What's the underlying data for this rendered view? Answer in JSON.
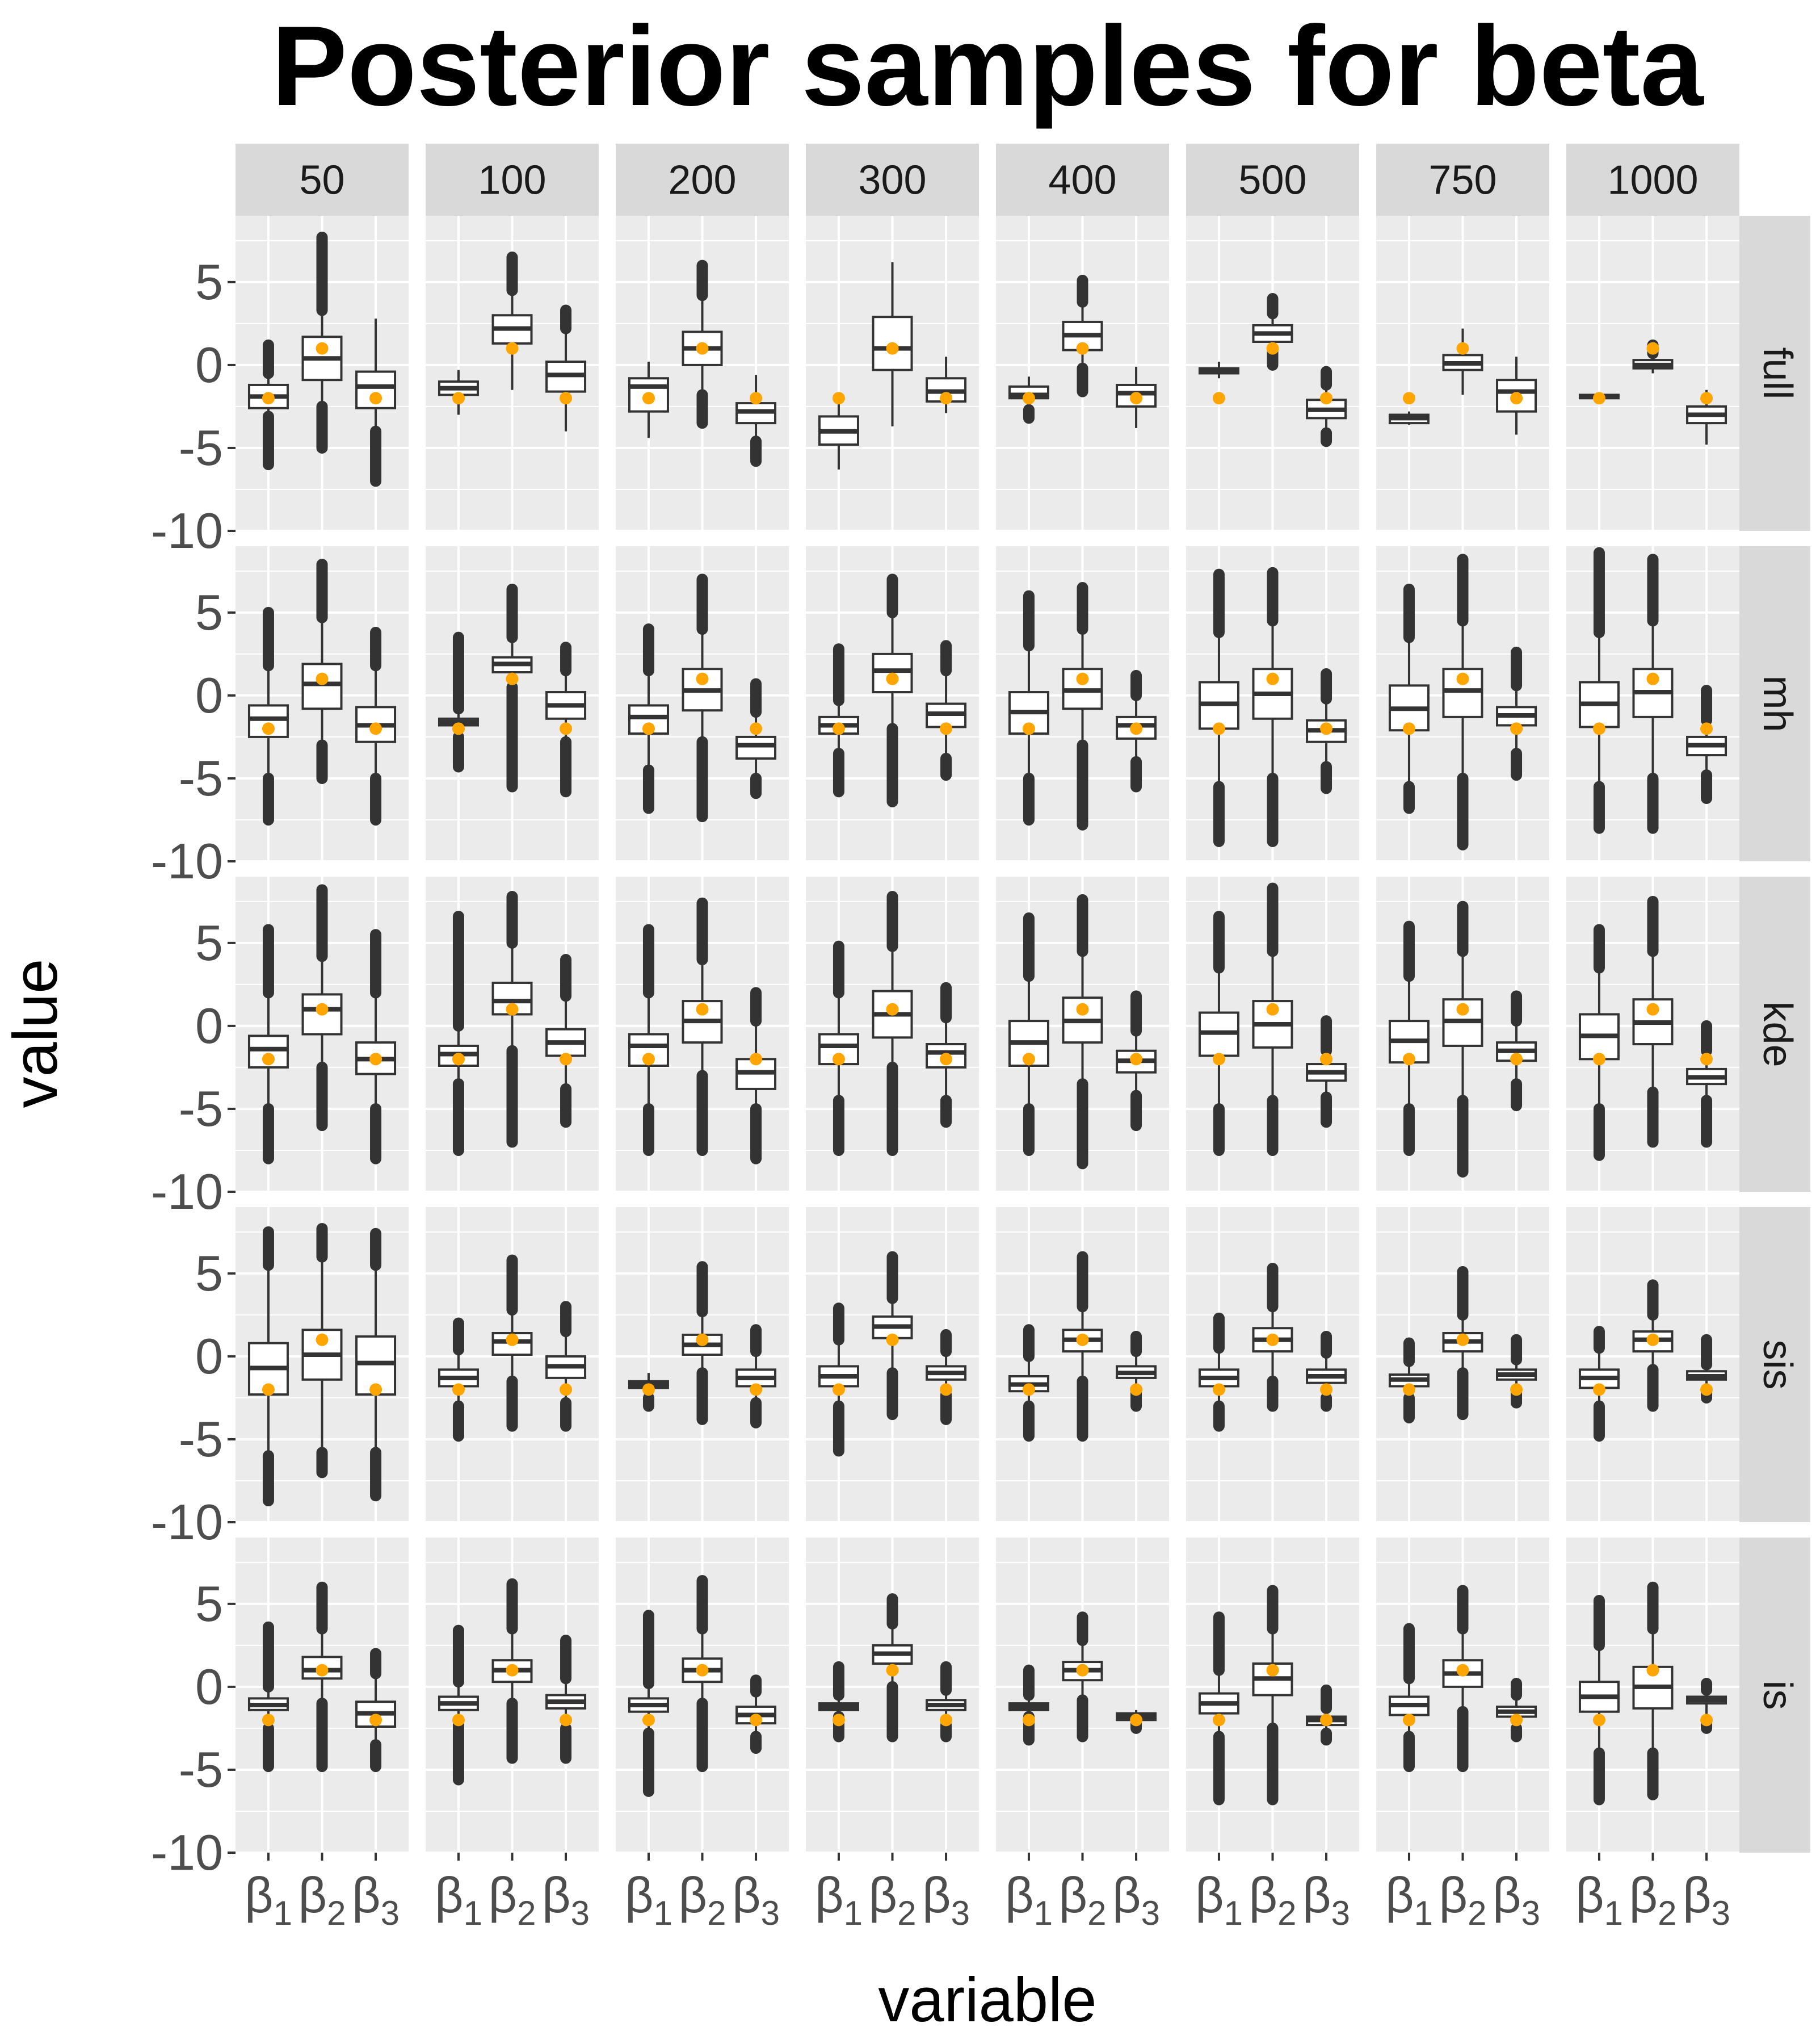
{
  "chart_data": {
    "type": "boxplot",
    "title": "Posterior samples for beta",
    "xlabel": "variable",
    "ylabel": "value",
    "ylim": [
      -10,
      9
    ],
    "yticks": [
      -10,
      -5,
      0,
      5
    ],
    "ytick_labels": [
      "-10",
      "-5",
      "0",
      "5"
    ],
    "grid": true,
    "column_facets": [
      "50",
      "100",
      "200",
      "300",
      "400",
      "500",
      "750",
      "1000"
    ],
    "row_facets": [
      "full",
      "mh",
      "kde",
      "sis",
      "is"
    ],
    "variables": [
      {
        "base": "β",
        "sub": "1"
      },
      {
        "base": "β",
        "sub": "2"
      },
      {
        "base": "β",
        "sub": "3"
      }
    ],
    "true_values": [
      -2,
      1,
      -2
    ],
    "colors": {
      "panel_bg": "#ebebeb",
      "grid": "#ffffff",
      "strip_bg": "#d9d9d9",
      "box_line": "#333333",
      "box_fill": "#ffffff",
      "outlier": "#333333",
      "true_point": "#ffa500"
    },
    "box_stats_format": "[whisker_low, q1, median, q3, whisker_high, outlier_low, outlier_high]",
    "box_stats": {
      "full": [
        [
          [
            -3.1,
            -2.6,
            -1.9,
            -1.2,
            -0.5,
            -6.0,
            1.2
          ],
          [
            -2.5,
            -0.9,
            0.4,
            1.7,
            3.3,
            -5.0,
            7.7
          ],
          [
            -4.0,
            -2.6,
            -1.3,
            -0.4,
            2.8,
            -7.0,
            null
          ]
        ],
        [
          [
            -3.0,
            -1.8,
            -1.4,
            -1.0,
            -0.3,
            null,
            null
          ],
          [
            -1.5,
            1.3,
            2.2,
            3.0,
            4.5,
            null,
            6.5
          ],
          [
            -4.0,
            -1.6,
            -0.6,
            0.2,
            2.2,
            null,
            3.3
          ]
        ],
        [
          [
            -4.4,
            -2.8,
            -1.3,
            -0.8,
            0.2,
            null,
            null
          ],
          [
            -1.8,
            0.0,
            1.0,
            2.0,
            4.2,
            -3.5,
            6.0
          ],
          [
            -4.6,
            -3.5,
            -2.8,
            -2.3,
            -0.6,
            -5.8,
            null
          ]
        ],
        [
          [
            -6.3,
            -4.8,
            -4.0,
            -3.1,
            -2.0,
            null,
            null
          ],
          [
            -3.7,
            -0.3,
            1.0,
            2.9,
            6.2,
            null,
            null
          ],
          [
            -2.9,
            -2.2,
            -1.6,
            -0.8,
            0.5,
            null,
            null
          ]
        ],
        [
          [
            -2.7,
            -2.0,
            -1.8,
            -1.3,
            -0.7,
            -3.2,
            null
          ],
          [
            -0.2,
            0.9,
            1.8,
            2.6,
            3.8,
            -1.6,
            5.1
          ],
          [
            -3.8,
            -2.5,
            -1.7,
            -1.2,
            -0.1,
            null,
            null
          ]
        ],
        [
          [
            -0.8,
            -0.5,
            -0.3,
            -0.2,
            0.2,
            null,
            null
          ],
          [
            0.9,
            1.4,
            1.9,
            2.4,
            3.1,
            0.0,
            4.0
          ],
          [
            -4.1,
            -3.2,
            -2.7,
            -2.1,
            -1.2,
            -4.6,
            -0.4
          ]
        ],
        [
          [
            -3.6,
            -3.5,
            -3.2,
            -3.0,
            -2.8,
            null,
            null
          ],
          [
            -1.8,
            -0.3,
            0.1,
            0.6,
            2.2,
            null,
            null
          ],
          [
            -4.2,
            -2.8,
            -1.6,
            -0.9,
            0.5,
            null,
            null
          ]
        ],
        [
          [
            -2.1,
            -2.0,
            -1.9,
            -1.8,
            -1.7,
            null,
            null
          ],
          [
            -0.5,
            -0.2,
            0.0,
            0.3,
            0.7,
            null,
            1.2
          ],
          [
            -4.8,
            -3.5,
            -3.0,
            -2.5,
            -1.5,
            null,
            null
          ]
        ]
      ],
      "mh": [
        [
          [
            -5.0,
            -2.5,
            -1.4,
            -0.6,
            1.8,
            -7.5,
            5.0
          ],
          [
            -3.0,
            -0.8,
            0.7,
            1.9,
            4.7,
            -5.0,
            7.9
          ],
          [
            -5.0,
            -2.8,
            -1.8,
            -0.7,
            1.8,
            -7.5,
            3.8
          ]
        ],
        [
          [
            -2.5,
            -1.8,
            -1.6,
            -1.4,
            -0.8,
            -4.3,
            3.5
          ],
          [
            0.5,
            1.4,
            1.9,
            2.3,
            3.5,
            -5.5,
            6.4
          ],
          [
            -2.8,
            -1.4,
            -0.6,
            0.2,
            1.5,
            -5.8,
            2.9
          ]
        ],
        [
          [
            -4.5,
            -2.3,
            -1.3,
            -0.6,
            1.5,
            -6.8,
            4.0
          ],
          [
            -2.8,
            -0.9,
            0.3,
            1.6,
            4.0,
            -7.3,
            7.0
          ],
          [
            -5.0,
            -3.8,
            -3.0,
            -2.5,
            -1.0,
            -5.9,
            0.7
          ]
        ],
        [
          [
            -3.5,
            -2.3,
            -1.8,
            -1.3,
            -0.3,
            -5.8,
            2.8
          ],
          [
            -2.0,
            0.2,
            1.5,
            2.5,
            5.0,
            -6.4,
            7.0
          ],
          [
            -3.8,
            -1.9,
            -1.1,
            -0.5,
            1.5,
            -4.8,
            3.0
          ]
        ],
        [
          [
            -5.0,
            -2.3,
            -1.0,
            0.2,
            3.0,
            -7.5,
            6.0
          ],
          [
            -3.0,
            -0.8,
            0.3,
            1.6,
            4.0,
            -7.8,
            6.5
          ],
          [
            -4.0,
            -2.6,
            -1.8,
            -1.3,
            0.0,
            -5.5,
            1.2
          ]
        ],
        [
          [
            -5.5,
            -2.0,
            -0.5,
            0.8,
            3.8,
            -8.8,
            7.3
          ],
          [
            -5.0,
            -1.4,
            0.1,
            1.6,
            4.5,
            -8.8,
            7.4
          ],
          [
            -4.3,
            -2.8,
            -2.1,
            -1.5,
            -0.2,
            -5.6,
            1.3
          ]
        ],
        [
          [
            -5.5,
            -2.1,
            -0.8,
            0.6,
            3.5,
            -6.8,
            6.4
          ],
          [
            -5.0,
            -1.3,
            0.3,
            1.6,
            4.5,
            -9.0,
            8.2
          ],
          [
            -3.5,
            -1.8,
            -1.2,
            -0.7,
            0.6,
            -4.8,
            2.6
          ]
        ],
        [
          [
            -5.5,
            -1.9,
            -0.5,
            0.8,
            3.8,
            -8.0,
            8.6
          ],
          [
            -5.0,
            -1.3,
            0.2,
            1.6,
            4.5,
            -8.0,
            8.2
          ],
          [
            -4.8,
            -3.6,
            -3.0,
            -2.5,
            -1.5,
            -6.2,
            0.3
          ]
        ]
      ],
      "kde": [
        [
          [
            -5.0,
            -2.5,
            -1.4,
            -0.6,
            2.0,
            -8.0,
            5.8
          ],
          [
            -2.5,
            -0.5,
            1.0,
            1.9,
            4.2,
            -6.0,
            8.2
          ],
          [
            -5.0,
            -2.9,
            -2.0,
            -1.0,
            2.0,
            -8.0,
            5.5
          ]
        ],
        [
          [
            -3.5,
            -2.4,
            -1.7,
            -1.2,
            0.0,
            -7.5,
            6.6
          ],
          [
            -1.5,
            0.7,
            1.5,
            2.6,
            5.0,
            -7.0,
            7.8
          ],
          [
            -3.8,
            -1.8,
            -1.0,
            -0.2,
            1.8,
            -5.8,
            4.0
          ]
        ],
        [
          [
            -5.0,
            -2.4,
            -1.2,
            -0.5,
            2.0,
            -7.5,
            5.8
          ],
          [
            -3.0,
            -1.0,
            0.3,
            1.5,
            4.0,
            -7.5,
            7.4
          ],
          [
            -5.0,
            -3.8,
            -2.8,
            -2.0,
            0.3,
            -8.0,
            2.0
          ]
        ],
        [
          [
            -4.5,
            -2.3,
            -1.2,
            -0.5,
            2.0,
            -7.5,
            4.8
          ],
          [
            -2.5,
            -0.7,
            0.7,
            2.1,
            4.8,
            -7.5,
            7.8
          ],
          [
            -4.5,
            -2.5,
            -1.6,
            -1.1,
            0.5,
            -5.8,
            2.3
          ]
        ],
        [
          [
            -5.0,
            -2.4,
            -1.0,
            0.3,
            3.0,
            -7.5,
            6.5
          ],
          [
            -3.5,
            -1.0,
            0.3,
            1.7,
            4.5,
            -8.3,
            7.6
          ],
          [
            -4.2,
            -2.8,
            -2.1,
            -1.5,
            -0.3,
            -6.0,
            1.8
          ]
        ],
        [
          [
            -5.0,
            -1.8,
            -0.4,
            0.8,
            3.5,
            -7.5,
            6.6
          ],
          [
            -4.5,
            -1.3,
            0.1,
            1.5,
            4.5,
            -7.5,
            8.3
          ],
          [
            -4.3,
            -3.3,
            -2.8,
            -2.3,
            -1.5,
            -5.8,
            0.3
          ]
        ],
        [
          [
            -5.0,
            -2.2,
            -0.9,
            0.3,
            3.0,
            -7.5,
            6.0
          ],
          [
            -4.5,
            -1.2,
            0.3,
            1.6,
            4.5,
            -8.8,
            7.2
          ],
          [
            -3.5,
            -2.1,
            -1.5,
            -1.0,
            0.3,
            -4.8,
            1.8
          ]
        ],
        [
          [
            -5.0,
            -2.0,
            -0.6,
            0.7,
            3.5,
            -7.8,
            5.8
          ],
          [
            -4.0,
            -1.1,
            0.2,
            1.6,
            4.5,
            -7.0,
            7.5
          ],
          [
            -4.5,
            -3.5,
            -3.1,
            -2.6,
            -1.5,
            -7.0,
            0.0
          ]
        ]
      ],
      "sis": [
        [
          [
            -6.0,
            -2.3,
            -0.7,
            0.8,
            5.5,
            -8.7,
            7.5
          ],
          [
            -5.8,
            -1.4,
            0.1,
            1.6,
            6.0,
            -7.0,
            7.7
          ],
          [
            -5.8,
            -2.3,
            -0.4,
            1.2,
            5.5,
            -8.4,
            7.4
          ]
        ],
        [
          [
            -3.0,
            -1.8,
            -1.3,
            -0.8,
            0.4,
            -4.8,
            2.0
          ],
          [
            -1.5,
            0.1,
            0.9,
            1.4,
            2.8,
            -4.2,
            5.8
          ],
          [
            -2.8,
            -1.3,
            -0.6,
            0.0,
            1.5,
            -4.2,
            3.0
          ]
        ],
        [
          [
            -2.5,
            -1.9,
            -1.7,
            -1.5,
            -1.0,
            -3.0,
            null
          ],
          [
            -1.0,
            0.1,
            0.7,
            1.3,
            2.7,
            -3.8,
            5.4
          ],
          [
            -2.8,
            -1.8,
            -1.3,
            -0.8,
            0.3,
            -4.0,
            1.6
          ]
        ],
        [
          [
            -3.0,
            -1.8,
            -1.2,
            -0.6,
            1.0,
            -5.7,
            2.9
          ],
          [
            -1.0,
            1.1,
            1.8,
            2.4,
            3.5,
            -3.5,
            6.0
          ],
          [
            -2.3,
            -1.4,
            -1.0,
            -0.6,
            0.3,
            -3.8,
            1.3
          ]
        ],
        [
          [
            -3.0,
            -2.1,
            -1.7,
            -1.2,
            0.0,
            -4.8,
            1.6
          ],
          [
            -1.5,
            0.3,
            1.0,
            1.6,
            3.0,
            -4.8,
            6.0
          ],
          [
            -2.0,
            -1.3,
            -1.0,
            -0.6,
            0.3,
            -3.0,
            1.2
          ]
        ],
        [
          [
            -3.0,
            -1.8,
            -1.3,
            -0.8,
            0.5,
            -4.2,
            2.3
          ],
          [
            -1.5,
            0.3,
            1.0,
            1.7,
            3.0,
            -3.0,
            5.3
          ],
          [
            -2.5,
            -1.6,
            -1.2,
            -0.8,
            0.2,
            -3.0,
            1.2
          ]
        ],
        [
          [
            -2.5,
            -1.8,
            -1.4,
            -1.1,
            -0.3,
            -3.7,
            0.8
          ],
          [
            -1.0,
            0.3,
            0.9,
            1.4,
            2.5,
            -3.5,
            5.1
          ],
          [
            -2.0,
            -1.4,
            -1.1,
            -0.8,
            -0.2,
            -2.8,
            1.0
          ]
        ],
        [
          [
            -3.0,
            -1.9,
            -1.3,
            -0.8,
            0.5,
            -4.8,
            1.5
          ],
          [
            -0.8,
            0.3,
            1.0,
            1.5,
            2.5,
            -3.0,
            4.3
          ],
          [
            -2.0,
            -1.4,
            -1.2,
            -0.9,
            -0.5,
            -2.5,
            1.0
          ]
        ]
      ],
      "is": [
        [
          [
            -2.5,
            -1.4,
            -1.1,
            -0.7,
            0.0,
            -4.8,
            3.6
          ],
          [
            -1.0,
            0.5,
            1.0,
            1.8,
            3.5,
            -4.8,
            6.0
          ],
          [
            -3.5,
            -2.4,
            -1.6,
            -0.9,
            0.8,
            -4.8,
            2.0
          ]
        ],
        [
          [
            -2.3,
            -1.4,
            -1.0,
            -0.6,
            0.3,
            -5.6,
            3.4
          ],
          [
            -1.0,
            0.3,
            1.0,
            1.6,
            3.5,
            -4.3,
            6.2
          ],
          [
            -2.5,
            -1.3,
            -0.9,
            -0.5,
            0.5,
            -4.3,
            2.8
          ]
        ],
        [
          [
            -2.8,
            -1.5,
            -1.1,
            -0.7,
            0.2,
            -6.3,
            4.3
          ],
          [
            -1.0,
            0.3,
            1.0,
            1.7,
            3.5,
            -4.8,
            6.4
          ],
          [
            -3.0,
            -2.2,
            -1.7,
            -1.2,
            -0.3,
            -3.7,
            0.4
          ]
        ],
        [
          [
            -1.8,
            -1.4,
            -1.2,
            -1.0,
            -0.5,
            -3.0,
            1.2
          ],
          [
            0.0,
            1.4,
            2.0,
            2.5,
            3.8,
            -3.0,
            5.3
          ],
          [
            -2.3,
            -1.4,
            -1.1,
            -0.8,
            -0.2,
            -3.0,
            1.2
          ]
        ],
        [
          [
            -1.8,
            -1.4,
            -1.2,
            -1.0,
            -0.5,
            -3.2,
            1.0
          ],
          [
            -0.8,
            0.4,
            1.0,
            1.5,
            2.8,
            -3.0,
            4.2
          ],
          [
            -2.2,
            -2.0,
            -1.8,
            -1.6,
            -1.4,
            -2.5,
            null
          ]
        ],
        [
          [
            -3.0,
            -1.6,
            -1.0,
            -0.4,
            1.0,
            -6.8,
            4.2
          ],
          [
            -2.5,
            -0.5,
            0.5,
            1.4,
            3.5,
            -6.8,
            5.8
          ],
          [
            -2.8,
            -2.3,
            -2.0,
            -1.8,
            -1.3,
            -3.2,
            -0.2
          ]
        ],
        [
          [
            -3.0,
            -1.7,
            -1.1,
            -0.6,
            0.5,
            -4.8,
            3.5
          ],
          [
            -1.5,
            0.0,
            0.8,
            1.6,
            3.5,
            -4.8,
            5.8
          ],
          [
            -2.5,
            -1.8,
            -1.5,
            -1.2,
            -0.5,
            -3.0,
            0.2
          ]
        ],
        [
          [
            -4.0,
            -1.5,
            -0.6,
            0.3,
            2.5,
            -6.8,
            5.2
          ],
          [
            -4.0,
            -1.3,
            0.0,
            1.2,
            3.5,
            -6.5,
            6.0
          ],
          [
            -2.0,
            -1.0,
            -0.8,
            -0.6,
            -0.2,
            -2.5,
            0.2
          ]
        ]
      ]
    }
  }
}
